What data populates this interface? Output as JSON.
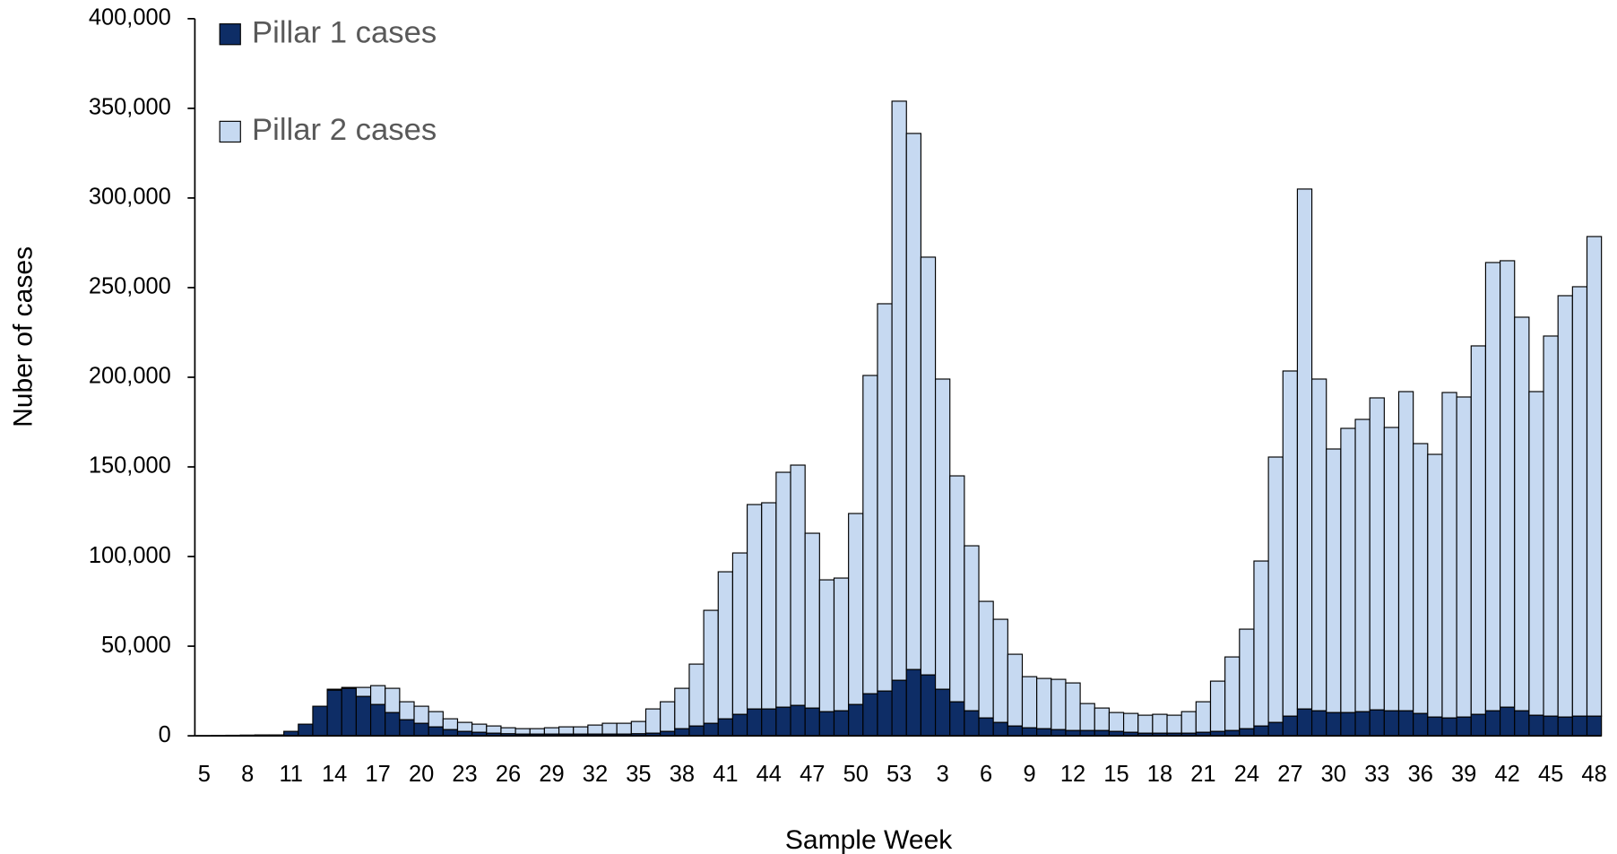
{
  "chart_data": {
    "type": "stacked_bar",
    "x_label": "Sample Week",
    "y_label": "Nuber of cases",
    "categories": [
      "5",
      null,
      null,
      "8",
      null,
      null,
      "11",
      null,
      null,
      "14",
      null,
      null,
      "17",
      null,
      null,
      "20",
      null,
      null,
      "23",
      null,
      null,
      "26",
      null,
      null,
      "29",
      null,
      null,
      "32",
      null,
      null,
      "35",
      null,
      null,
      "38",
      null,
      null,
      "41",
      null,
      null,
      "44",
      null,
      null,
      "47",
      null,
      null,
      "50",
      null,
      null,
      "53",
      null,
      null,
      "3",
      null,
      null,
      "6",
      null,
      null,
      "9",
      null,
      null,
      "12",
      null,
      null,
      "15",
      null,
      null,
      "18",
      null,
      null,
      "21",
      null,
      null,
      "24",
      null,
      null,
      "27",
      null,
      null,
      "30",
      null,
      null,
      "33",
      null,
      null,
      "36",
      null,
      null,
      "39",
      null,
      null,
      "42",
      null,
      null,
      "45",
      null,
      null,
      "48"
    ],
    "series": [
      {
        "name": "Pillar 1 cases",
        "color": "#0e2d66",
        "values": [
          100,
          200,
          300,
          400,
          500,
          500,
          2500,
          6500,
          16500,
          25500,
          26500,
          22000,
          17500,
          13000,
          9000,
          7000,
          5000,
          3500,
          2500,
          2000,
          1500,
          1200,
          1000,
          1000,
          1000,
          1000,
          1000,
          1000,
          1000,
          1000,
          1200,
          1500,
          2500,
          4000,
          5500,
          7000,
          9500,
          12000,
          15000,
          15000,
          16000,
          17000,
          15500,
          13500,
          14000,
          17500,
          23500,
          25000,
          31000,
          37000,
          34000,
          26000,
          19000,
          14000,
          10000,
          7500,
          5500,
          4500,
          4000,
          3500,
          3000,
          3000,
          3000,
          2500,
          2000,
          1500,
          1500,
          1500,
          1500,
          2000,
          2500,
          3000,
          4000,
          5500,
          7500,
          11000,
          15000,
          14000,
          13000,
          13000,
          13500,
          14500,
          14000,
          14000,
          12500,
          10500,
          10000,
          10500,
          12000,
          14000,
          16000,
          14000,
          11500,
          11000,
          10500,
          11000,
          11000
        ]
      },
      {
        "name": "Pillar 2 cases",
        "color": "#c6d9f1",
        "values": [
          0,
          0,
          0,
          0,
          0,
          0,
          0,
          0,
          0,
          500,
          500,
          5000,
          10500,
          13500,
          10000,
          9500,
          8500,
          6000,
          5000,
          4500,
          4000,
          3300,
          3000,
          3000,
          3500,
          4000,
          4000,
          5000,
          6000,
          6000,
          6800,
          13500,
          16500,
          22500,
          34500,
          63000,
          82000,
          90000,
          114000,
          115000,
          131000,
          134000,
          97500,
          73500,
          74000,
          106500,
          177500,
          216000,
          323000,
          299000,
          233000,
          173000,
          126000,
          92000,
          65000,
          57500,
          40000,
          28500,
          28000,
          28000,
          26500,
          15000,
          12500,
          10500,
          10500,
          10000,
          10500,
          10000,
          12000,
          17000,
          28000,
          41000,
          55500,
          92000,
          148000,
          192500,
          290000,
          185000,
          147000,
          158500,
          163000,
          174000,
          158000,
          178000,
          150500,
          146500,
          181500,
          178500,
          205500,
          250000,
          249000,
          219500,
          180500,
          212000,
          235000,
          239500,
          267500
        ]
      }
    ],
    "ylim": [
      0,
      400000
    ],
    "yticks": [
      0,
      {
        "value": 50000,
        "label": "50,000"
      },
      {
        "value": 100000,
        "label": "100,000"
      },
      {
        "value": 150000,
        "label": "150,000"
      },
      {
        "value": 200000,
        "label": "200,000"
      },
      {
        "value": 250000,
        "label": "250,000"
      },
      {
        "value": 300000,
        "label": "300,000"
      },
      {
        "value": 350000,
        "label": "350,000"
      },
      {
        "value": 400000,
        "label": "400,000"
      }
    ],
    "legend": "top-left"
  }
}
